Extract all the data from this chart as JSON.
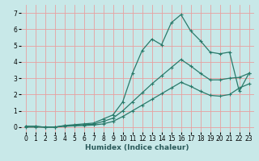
{
  "xlabel": "Humidex (Indice chaleur)",
  "bg_color": "#c8e8e8",
  "line_color": "#2a7a6a",
  "grid_color": "#e8a0a0",
  "xlim": [
    -0.5,
    23.5
  ],
  "ylim": [
    -0.3,
    7.5
  ],
  "xticks": [
    0,
    1,
    2,
    3,
    4,
    5,
    6,
    7,
    8,
    9,
    10,
    11,
    12,
    13,
    14,
    15,
    16,
    17,
    18,
    19,
    20,
    21,
    22,
    23
  ],
  "yticks": [
    0,
    1,
    2,
    3,
    4,
    5,
    6,
    7
  ],
  "line1_x": [
    0,
    1,
    2,
    3,
    4,
    5,
    6,
    7,
    8,
    9,
    10,
    11,
    12,
    13,
    14,
    15,
    16,
    17,
    18,
    19,
    20,
    21,
    22,
    23
  ],
  "line1_y": [
    0.05,
    0.05,
    0.0,
    0.0,
    0.1,
    0.15,
    0.2,
    0.25,
    0.5,
    0.75,
    1.55,
    3.3,
    4.7,
    5.4,
    5.05,
    6.4,
    6.9,
    5.9,
    5.3,
    4.6,
    4.5,
    4.6,
    2.2,
    3.3
  ],
  "line2_x": [
    0,
    1,
    2,
    3,
    4,
    5,
    6,
    7,
    8,
    9,
    10,
    11,
    12,
    13,
    14,
    15,
    16,
    17,
    18,
    19,
    20,
    21,
    22,
    23
  ],
  "line2_y": [
    0.05,
    0.05,
    0.0,
    0.0,
    0.08,
    0.1,
    0.15,
    0.18,
    0.35,
    0.55,
    1.0,
    1.55,
    2.1,
    2.65,
    3.15,
    3.65,
    4.15,
    3.75,
    3.3,
    2.9,
    2.9,
    3.0,
    3.05,
    3.3
  ],
  "line3_x": [
    0,
    1,
    2,
    3,
    4,
    5,
    6,
    7,
    8,
    9,
    10,
    11,
    12,
    13,
    14,
    15,
    16,
    17,
    18,
    19,
    20,
    21,
    22,
    23
  ],
  "line3_y": [
    0.0,
    0.0,
    0.0,
    0.0,
    0.05,
    0.08,
    0.1,
    0.13,
    0.2,
    0.35,
    0.65,
    1.0,
    1.35,
    1.7,
    2.05,
    2.4,
    2.75,
    2.5,
    2.2,
    1.95,
    1.9,
    2.0,
    2.4,
    2.65
  ],
  "tick_fontsize": 5.5,
  "xlabel_fontsize": 6.5,
  "xlabel_color": "#2a5a5a",
  "linewidth": 0.9,
  "markersize": 3.5,
  "markeredgewidth": 0.8
}
